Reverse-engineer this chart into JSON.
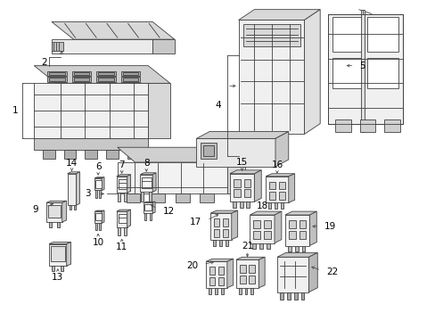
{
  "background_color": "#ffffff",
  "line_color": "#404040",
  "text_color": "#000000",
  "fig_width": 4.89,
  "fig_height": 3.6,
  "dpi": 100,
  "lw": 0.6
}
